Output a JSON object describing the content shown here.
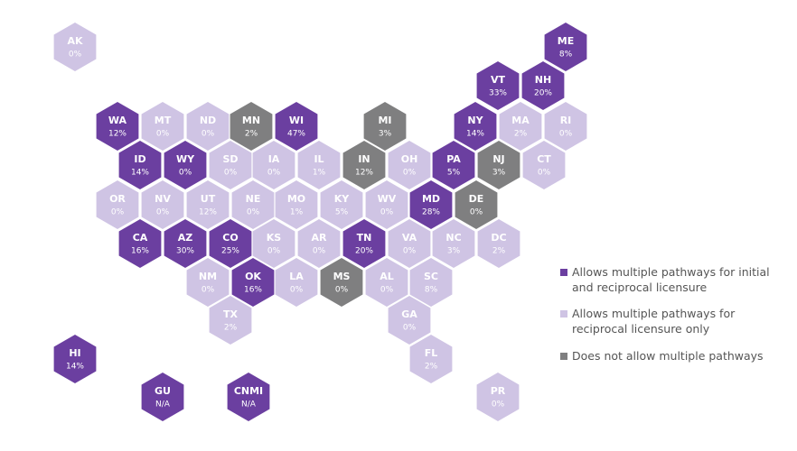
{
  "map": {
    "legend": [
      {
        "label": "Allows multiple pathways for initial and reciprocal licensure",
        "color": "#6b3fa0"
      },
      {
        "label": "Allows multiple pathways for reciprocal licensure only",
        "color": "#cfc4e4"
      },
      {
        "label": "Does not allow multiple pathways",
        "color": "#7f7f80"
      }
    ],
    "tiles": [
      {
        "abbr": "AK",
        "value": "0%",
        "category": 1
      },
      {
        "abbr": "ME",
        "value": "8%",
        "category": 0
      },
      {
        "abbr": "VT",
        "value": "33%",
        "category": 0
      },
      {
        "abbr": "NH",
        "value": "20%",
        "category": 0
      },
      {
        "abbr": "WA",
        "value": "12%",
        "category": 0
      },
      {
        "abbr": "MT",
        "value": "0%",
        "category": 1
      },
      {
        "abbr": "ND",
        "value": "0%",
        "category": 1
      },
      {
        "abbr": "MN",
        "value": "2%",
        "category": 2
      },
      {
        "abbr": "WI",
        "value": "47%",
        "category": 0
      },
      {
        "abbr": "MI",
        "value": "3%",
        "category": 2
      },
      {
        "abbr": "NY",
        "value": "14%",
        "category": 0
      },
      {
        "abbr": "MA",
        "value": "2%",
        "category": 1
      },
      {
        "abbr": "RI",
        "value": "0%",
        "category": 1
      },
      {
        "abbr": "ID",
        "value": "14%",
        "category": 0
      },
      {
        "abbr": "WY",
        "value": "0%",
        "category": 0
      },
      {
        "abbr": "SD",
        "value": "0%",
        "category": 1
      },
      {
        "abbr": "IA",
        "value": "0%",
        "category": 1
      },
      {
        "abbr": "IL",
        "value": "1%",
        "category": 1
      },
      {
        "abbr": "IN",
        "value": "12%",
        "category": 2
      },
      {
        "abbr": "OH",
        "value": "0%",
        "category": 1
      },
      {
        "abbr": "PA",
        "value": "5%",
        "category": 0
      },
      {
        "abbr": "NJ",
        "value": "3%",
        "category": 2
      },
      {
        "abbr": "CT",
        "value": "0%",
        "category": 1
      },
      {
        "abbr": "OR",
        "value": "0%",
        "category": 1
      },
      {
        "abbr": "NV",
        "value": "0%",
        "category": 1
      },
      {
        "abbr": "UT",
        "value": "12%",
        "category": 1
      },
      {
        "abbr": "NE",
        "value": "0%",
        "category": 1
      },
      {
        "abbr": "MO",
        "value": "1%",
        "category": 1
      },
      {
        "abbr": "KY",
        "value": "5%",
        "category": 1
      },
      {
        "abbr": "WV",
        "value": "0%",
        "category": 1
      },
      {
        "abbr": "MD",
        "value": "28%",
        "category": 0
      },
      {
        "abbr": "DE",
        "value": "0%",
        "category": 2
      },
      {
        "abbr": "CA",
        "value": "16%",
        "category": 0
      },
      {
        "abbr": "AZ",
        "value": "30%",
        "category": 0
      },
      {
        "abbr": "CO",
        "value": "25%",
        "category": 0
      },
      {
        "abbr": "KS",
        "value": "0%",
        "category": 1
      },
      {
        "abbr": "AR",
        "value": "0%",
        "category": 1
      },
      {
        "abbr": "TN",
        "value": "20%",
        "category": 0
      },
      {
        "abbr": "VA",
        "value": "0%",
        "category": 1
      },
      {
        "abbr": "NC",
        "value": "3%",
        "category": 1
      },
      {
        "abbr": "DC",
        "value": "2%",
        "category": 1
      },
      {
        "abbr": "NM",
        "value": "0%",
        "category": 1
      },
      {
        "abbr": "OK",
        "value": "16%",
        "category": 0
      },
      {
        "abbr": "LA",
        "value": "0%",
        "category": 1
      },
      {
        "abbr": "MS",
        "value": "0%",
        "category": 2
      },
      {
        "abbr": "AL",
        "value": "0%",
        "category": 1
      },
      {
        "abbr": "SC",
        "value": "8%",
        "category": 1
      },
      {
        "abbr": "TX",
        "value": "2%",
        "category": 1
      },
      {
        "abbr": "GA",
        "value": "0%",
        "category": 1
      },
      {
        "abbr": "FL",
        "value": "2%",
        "category": 1
      },
      {
        "abbr": "HI",
        "value": "14%",
        "category": 0
      },
      {
        "abbr": "GU",
        "value": "N/A",
        "category": 0
      },
      {
        "abbr": "CNMI",
        "value": "N/A",
        "category": 0
      },
      {
        "abbr": "PR",
        "value": "0%",
        "category": 1
      }
    ]
  }
}
